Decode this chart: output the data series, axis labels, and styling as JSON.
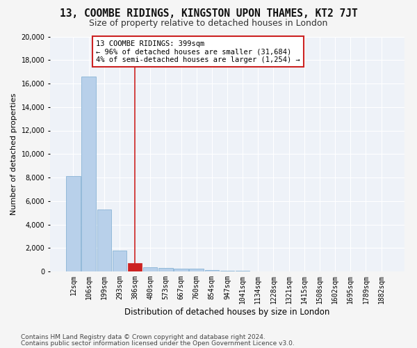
{
  "title1": "13, COOMBE RIDINGS, KINGSTON UPON THAMES, KT2 7JT",
  "title2": "Size of property relative to detached houses in London",
  "xlabel": "Distribution of detached houses by size in London",
  "ylabel": "Number of detached properties",
  "footnote1": "Contains HM Land Registry data © Crown copyright and database right 2024.",
  "footnote2": "Contains public sector information licensed under the Open Government Licence v3.0.",
  "bar_values": [
    8100,
    16600,
    5300,
    1750,
    700,
    350,
    275,
    225,
    225,
    100,
    50,
    30,
    20,
    15,
    10,
    8,
    6,
    5,
    4,
    3,
    2
  ],
  "bar_labels": [
    "12sqm",
    "106sqm",
    "199sqm",
    "293sqm",
    "386sqm",
    "480sqm",
    "573sqm",
    "667sqm",
    "760sqm",
    "854sqm",
    "947sqm",
    "1041sqm",
    "1134sqm",
    "1228sqm",
    "1321sqm",
    "1415sqm",
    "1508sqm",
    "1602sqm",
    "1695sqm",
    "1789sqm",
    "1882sqm"
  ],
  "bar_color": "#b8d0ea",
  "bar_edge_color": "#7aaad0",
  "highlight_bar_index": 4,
  "highlight_bar_color": "#cc2222",
  "highlight_bar_edge_color": "#cc2222",
  "vline_x": 4,
  "vline_color": "#cc2222",
  "annotation_line1": "13 COOMBE RIDINGS: 399sqm",
  "annotation_line2": "← 96% of detached houses are smaller (31,684)",
  "annotation_line3": "4% of semi-detached houses are larger (1,254) →",
  "annotation_box_color": "#ffffff",
  "annotation_box_edge_color": "#cc2222",
  "ylim": [
    0,
    20000
  ],
  "yticks": [
    0,
    2000,
    4000,
    6000,
    8000,
    10000,
    12000,
    14000,
    16000,
    18000,
    20000
  ],
  "bg_color": "#eef2f8",
  "grid_color": "#ffffff",
  "fig_bg_color": "#f5f5f5",
  "title1_fontsize": 10.5,
  "title2_fontsize": 9,
  "xlabel_fontsize": 8.5,
  "ylabel_fontsize": 8,
  "tick_fontsize": 7,
  "annot_fontsize": 7.5,
  "footnote_fontsize": 6.5
}
